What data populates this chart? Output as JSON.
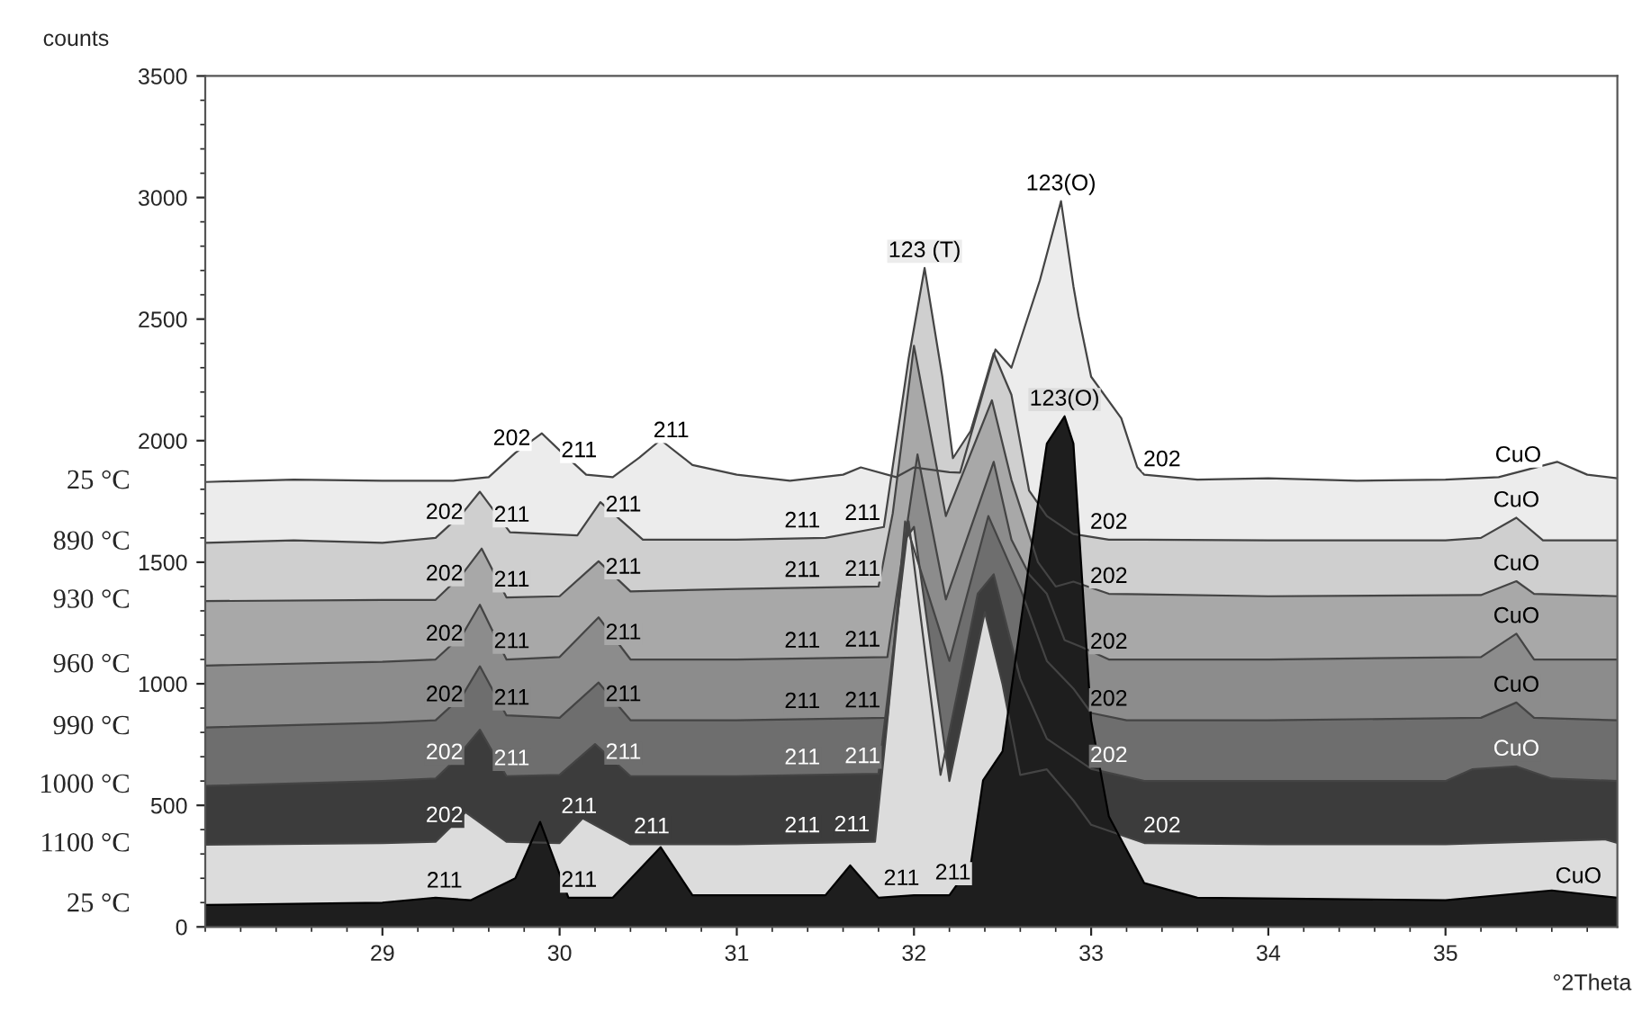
{
  "chart_data": {
    "type": "area",
    "xlabel": "°2Theta",
    "ylabel": "counts",
    "xlim": [
      28.0,
      35.97
    ],
    "ylim": [
      0,
      3500
    ],
    "xticks": [
      29,
      30,
      31,
      32,
      33,
      34,
      35
    ],
    "yticks": [
      0,
      500,
      1000,
      1500,
      2000,
      2500,
      3000,
      3500
    ],
    "grid": false,
    "legend": false,
    "series": [
      {
        "name": "25 °C",
        "color": "#ececec",
        "x": [
          28.0,
          28.5,
          29.0,
          29.4,
          29.6,
          29.75,
          29.9,
          30.0,
          30.15,
          30.3,
          30.45,
          30.57,
          30.75,
          31.0,
          31.3,
          31.6,
          31.7,
          31.9,
          32.0,
          32.2,
          32.26,
          32.46,
          32.55,
          32.71,
          32.83,
          32.9,
          32.93,
          33.0,
          33.17,
          33.26,
          33.3,
          33.6,
          34.0,
          34.5,
          35.0,
          35.3,
          35.63,
          35.8,
          35.97
        ],
        "values": [
          1830,
          1840,
          1835,
          1835,
          1850,
          1950,
          2030,
          1960,
          1860,
          1850,
          1930,
          2003,
          1900,
          1860,
          1835,
          1860,
          1890,
          1850,
          1890,
          1870,
          1868,
          2375,
          2300,
          2658,
          2985,
          2635,
          2510,
          2263,
          2092,
          1891,
          1860,
          1840,
          1845,
          1835,
          1840,
          1850,
          1913,
          1860,
          1845
        ]
      },
      {
        "name": "890 °C",
        "color": "#cfcfcf",
        "x": [
          28.0,
          28.5,
          29.0,
          29.3,
          29.45,
          29.55,
          29.72,
          30.1,
          30.23,
          30.47,
          31.0,
          31.5,
          31.83,
          31.97,
          32.06,
          32.16,
          32.22,
          32.32,
          32.45,
          32.55,
          32.65,
          32.75,
          32.9,
          33.1,
          34.0,
          35.0,
          35.2,
          35.4,
          35.55,
          35.97
        ],
        "values": [
          1580,
          1590,
          1580,
          1600,
          1700,
          1790,
          1623,
          1610,
          1747,
          1593,
          1593,
          1600,
          1645,
          2338,
          2710,
          2263,
          1928,
          2040,
          2360,
          2189,
          1794,
          1690,
          1616,
          1593,
          1590,
          1590,
          1600,
          1683,
          1590,
          1590
        ]
      },
      {
        "name": "930 °C",
        "color": "#a8a8a8",
        "x": [
          28.0,
          29.0,
          29.3,
          29.45,
          29.56,
          29.7,
          30.0,
          30.22,
          30.4,
          31.0,
          31.8,
          31.88,
          32.0,
          32.18,
          32.44,
          32.55,
          32.7,
          32.8,
          32.9,
          33.1,
          34.0,
          35.2,
          35.4,
          35.5,
          35.97
        ],
        "values": [
          1340,
          1345,
          1345,
          1450,
          1556,
          1355,
          1360,
          1504,
          1380,
          1390,
          1400,
          1700,
          2390,
          1690,
          2166,
          1839,
          1500,
          1400,
          1420,
          1370,
          1360,
          1365,
          1422,
          1370,
          1360
        ]
      },
      {
        "name": "960 °C",
        "color": "#8c8c8c",
        "x": [
          28.0,
          29.0,
          29.3,
          29.45,
          29.55,
          29.7,
          30.0,
          30.22,
          30.4,
          31.0,
          31.85,
          32.02,
          32.18,
          32.45,
          32.55,
          32.65,
          32.75,
          32.85,
          32.95,
          33.1,
          34.0,
          35.2,
          35.4,
          35.5,
          35.97
        ],
        "values": [
          1075,
          1090,
          1100,
          1200,
          1325,
          1100,
          1110,
          1273,
          1100,
          1100,
          1110,
          1943,
          1347,
          1913,
          1593,
          1450,
          1370,
          1180,
          1150,
          1100,
          1100,
          1110,
          1206,
          1100,
          1100
        ]
      },
      {
        "name": "990 °C",
        "color": "#6e6e6e",
        "x": [
          28.0,
          29.0,
          29.3,
          29.45,
          29.55,
          29.7,
          30.0,
          30.22,
          30.4,
          31.0,
          31.85,
          31.95,
          32.2,
          32.42,
          32.6,
          32.75,
          32.9,
          33.0,
          33.2,
          34.0,
          35.2,
          35.4,
          35.5,
          35.97
        ],
        "values": [
          820,
          840,
          850,
          950,
          1072,
          870,
          860,
          1005,
          850,
          850,
          860,
          1668,
          1094,
          1690,
          1392,
          1094,
          980,
          880,
          850,
          850,
          860,
          923,
          860,
          850
        ]
      },
      {
        "name": "1000 °C",
        "color": "#3c3c3c",
        "x": [
          28.0,
          29.0,
          29.3,
          29.4,
          29.55,
          29.7,
          30.0,
          30.2,
          30.4,
          31.0,
          31.8,
          31.97,
          32.15,
          32.36,
          32.45,
          32.6,
          32.75,
          33.0,
          33.3,
          34.0,
          35.0,
          35.15,
          35.4,
          35.6,
          35.97
        ],
        "values": [
          580,
          600,
          610,
          680,
          811,
          620,
          625,
          752,
          620,
          620,
          630,
          1668,
          625,
          1370,
          1450,
          1020,
          774,
          650,
          600,
          600,
          600,
          648,
          660,
          610,
          600
        ]
      },
      {
        "name": "1100 °C",
        "color": "#dcdcdc",
        "x": [
          28.0,
          29.0,
          29.3,
          29.47,
          29.7,
          30.0,
          30.13,
          30.4,
          31.0,
          31.78,
          31.85,
          31.95,
          32.0,
          32.2,
          32.4,
          32.5,
          32.6,
          32.75,
          32.9,
          33.0,
          33.3,
          34.0,
          35.0,
          35.9,
          35.97
        ],
        "values": [
          338,
          345,
          350,
          472,
          350,
          345,
          447,
          340,
          340,
          350,
          849,
          1593,
          1645,
          600,
          1295,
          998,
          625,
          648,
          520,
          420,
          345,
          340,
          340,
          360,
          345
        ]
      },
      {
        "name": "25 °C",
        "color": "#1e1e1e",
        "x": [
          28.0,
          29.0,
          29.3,
          29.5,
          29.75,
          29.89,
          30.05,
          30.3,
          30.57,
          30.75,
          31.5,
          31.64,
          31.8,
          32.0,
          32.2,
          32.32,
          32.39,
          32.5,
          32.65,
          32.75,
          32.85,
          32.9,
          33.0,
          33.1,
          33.3,
          33.6,
          35.0,
          35.6,
          35.97
        ],
        "values": [
          90,
          100,
          120,
          110,
          200,
          432,
          120,
          120,
          328,
          130,
          130,
          253,
          120,
          130,
          130,
          253,
          603,
          722,
          1496,
          1988,
          2100,
          1988,
          849,
          454,
          180,
          120,
          110,
          150,
          120
        ]
      }
    ],
    "annotations": [
      {
        "text": "202",
        "x": 29.73,
        "y": 1937
      },
      {
        "text": "211",
        "x": 30.11,
        "y": 1887
      },
      {
        "text": "211",
        "x": 30.63,
        "y": 1969
      },
      {
        "text": "123 (T)",
        "x": 32.06,
        "y": 2710
      },
      {
        "text": "123(O)",
        "x": 32.83,
        "y": 2985
      },
      {
        "text": "202",
        "x": 33.4,
        "y": 1850
      },
      {
        "text": "123(O)",
        "x": 32.85,
        "y": 2100
      },
      {
        "text": "CuO",
        "x": 35.41,
        "y": 1868
      },
      {
        "text": "202",
        "x": 29.35,
        "y": 1633
      },
      {
        "text": "211",
        "x": 29.73,
        "y": 1622
      },
      {
        "text": "211",
        "x": 30.36,
        "y": 1664
      },
      {
        "text": "211",
        "x": 31.37,
        "y": 1598
      },
      {
        "text": "211",
        "x": 31.71,
        "y": 1629
      },
      {
        "text": "202",
        "x": 33.1,
        "y": 1593
      },
      {
        "text": "CuO",
        "x": 35.4,
        "y": 1683
      },
      {
        "text": "202",
        "x": 29.35,
        "y": 1380
      },
      {
        "text": "211",
        "x": 29.73,
        "y": 1355
      },
      {
        "text": "211",
        "x": 30.36,
        "y": 1408
      },
      {
        "text": "211",
        "x": 31.37,
        "y": 1395
      },
      {
        "text": "211",
        "x": 31.71,
        "y": 1399
      },
      {
        "text": "202",
        "x": 33.1,
        "y": 1370
      },
      {
        "text": "CuO",
        "x": 35.4,
        "y": 1422
      },
      {
        "text": "202",
        "x": 29.35,
        "y": 1133
      },
      {
        "text": "211",
        "x": 29.73,
        "y": 1102
      },
      {
        "text": "211",
        "x": 30.36,
        "y": 1138
      },
      {
        "text": "211",
        "x": 31.37,
        "y": 1104
      },
      {
        "text": "211",
        "x": 31.71,
        "y": 1108
      },
      {
        "text": "202",
        "x": 33.1,
        "y": 1100
      },
      {
        "text": "CuO",
        "x": 35.4,
        "y": 1206
      },
      {
        "text": "202",
        "x": 29.35,
        "y": 883
      },
      {
        "text": "211",
        "x": 29.73,
        "y": 869
      },
      {
        "text": "211",
        "x": 30.36,
        "y": 884
      },
      {
        "text": "211",
        "x": 31.37,
        "y": 855
      },
      {
        "text": "211",
        "x": 31.71,
        "y": 858
      },
      {
        "text": "202",
        "x": 33.1,
        "y": 865
      },
      {
        "text": "CuO",
        "x": 35.4,
        "y": 923
      },
      {
        "text": "202",
        "x": 29.35,
        "y": 645
      },
      {
        "text": "211",
        "x": 29.73,
        "y": 620
      },
      {
        "text": "211",
        "x": 30.36,
        "y": 646
      },
      {
        "text": "211",
        "x": 31.37,
        "y": 624
      },
      {
        "text": "211",
        "x": 31.71,
        "y": 629
      },
      {
        "text": "202",
        "x": 33.1,
        "y": 633
      },
      {
        "text": "CuO",
        "x": 35.4,
        "y": 660
      },
      {
        "text": "202",
        "x": 29.35,
        "y": 386
      },
      {
        "text": "211",
        "x": 30.11,
        "y": 423
      },
      {
        "text": "211",
        "x": 30.52,
        "y": 340
      },
      {
        "text": "211",
        "x": 31.37,
        "y": 344
      },
      {
        "text": "211",
        "x": 31.65,
        "y": 348
      },
      {
        "text": "202",
        "x": 33.4,
        "y": 344
      },
      {
        "text": "211",
        "x": 29.35,
        "y": 117
      },
      {
        "text": "211",
        "x": 30.11,
        "y": 120
      },
      {
        "text": "211",
        "x": 31.93,
        "y": 127
      },
      {
        "text": "211",
        "x": 32.22,
        "y": 150
      },
      {
        "text": "CuO",
        "x": 35.75,
        "y": 136
      }
    ]
  }
}
